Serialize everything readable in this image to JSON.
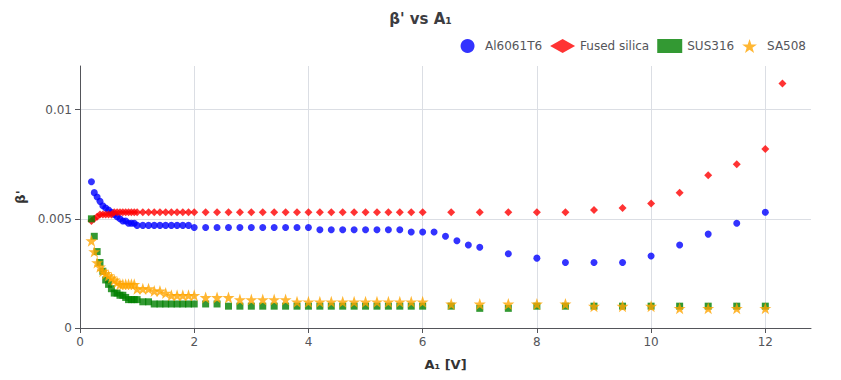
{
  "chart_data": {
    "type": "scatter",
    "title": "β' vs A₁",
    "x_label": "A₁ [V]",
    "y_label": "β'",
    "xlim": [
      0,
      12.8
    ],
    "ylim": [
      0,
      0.012
    ],
    "xticks": [
      0,
      2,
      4,
      6,
      8,
      10,
      12
    ],
    "yticks": [
      0,
      0.005,
      0.01
    ],
    "grid": true,
    "legend": "upper right",
    "series": [
      {
        "name": "Al6061T6",
        "color": "#0000FF",
        "marker": "circle",
        "x": [
          0.2,
          0.25,
          0.3,
          0.35,
          0.4,
          0.45,
          0.5,
          0.55,
          0.6,
          0.65,
          0.7,
          0.75,
          0.8,
          0.85,
          0.9,
          0.95,
          1.0,
          1.1,
          1.2,
          1.3,
          1.4,
          1.5,
          1.6,
          1.7,
          1.8,
          1.9,
          2.0,
          2.2,
          2.4,
          2.6,
          2.8,
          3.0,
          3.2,
          3.4,
          3.6,
          3.8,
          4.0,
          4.2,
          4.4,
          4.6,
          4.8,
          5.0,
          5.2,
          5.4,
          5.6,
          5.8,
          6.0,
          6.2,
          6.4,
          6.6,
          6.8,
          7.0,
          7.5,
          8.0,
          8.5,
          9.0,
          9.5,
          10.0,
          10.5,
          11.0,
          11.5,
          12.0
        ],
        "values": [
          0.0067,
          0.0062,
          0.006,
          0.0058,
          0.0056,
          0.0055,
          0.0054,
          0.0053,
          0.0052,
          0.0051,
          0.005,
          0.0049,
          0.0049,
          0.0048,
          0.0048,
          0.0048,
          0.0047,
          0.0047,
          0.0047,
          0.0047,
          0.0047,
          0.0047,
          0.0047,
          0.0047,
          0.0047,
          0.0047,
          0.0046,
          0.0046,
          0.0046,
          0.0046,
          0.0046,
          0.0046,
          0.0046,
          0.0046,
          0.0046,
          0.0046,
          0.0046,
          0.0045,
          0.0045,
          0.0045,
          0.0045,
          0.0045,
          0.0045,
          0.0045,
          0.0045,
          0.0044,
          0.0044,
          0.0044,
          0.0042,
          0.004,
          0.0038,
          0.0037,
          0.0034,
          0.0032,
          0.003,
          0.003,
          0.003,
          0.0033,
          0.0038,
          0.0043,
          0.0048,
          0.0053
        ]
      },
      {
        "name": "Fused silica",
        "color": "#FF0000",
        "marker": "diamond",
        "x": [
          0.2,
          0.25,
          0.3,
          0.35,
          0.4,
          0.45,
          0.5,
          0.55,
          0.6,
          0.65,
          0.7,
          0.75,
          0.8,
          0.85,
          0.9,
          0.95,
          1.0,
          1.1,
          1.2,
          1.3,
          1.4,
          1.5,
          1.6,
          1.7,
          1.8,
          1.9,
          2.0,
          2.2,
          2.4,
          2.6,
          2.8,
          3.0,
          3.2,
          3.4,
          3.6,
          3.8,
          4.0,
          4.2,
          4.4,
          4.6,
          4.8,
          5.0,
          5.2,
          5.4,
          5.6,
          5.8,
          6.0,
          6.5,
          7.0,
          7.5,
          8.0,
          8.5,
          9.0,
          9.5,
          10.0,
          10.5,
          11.0,
          11.5,
          12.0,
          12.3
        ],
        "values": [
          0.0049,
          0.005,
          0.0051,
          0.0052,
          0.0052,
          0.0052,
          0.0052,
          0.0052,
          0.0053,
          0.0053,
          0.0053,
          0.0053,
          0.0053,
          0.0053,
          0.0053,
          0.0053,
          0.0053,
          0.0053,
          0.0053,
          0.0053,
          0.0053,
          0.0053,
          0.0053,
          0.0053,
          0.0053,
          0.0053,
          0.0053,
          0.0053,
          0.0053,
          0.0053,
          0.0053,
          0.0053,
          0.0053,
          0.0053,
          0.0053,
          0.0053,
          0.0053,
          0.0053,
          0.0053,
          0.0053,
          0.0053,
          0.0053,
          0.0053,
          0.0053,
          0.0053,
          0.0053,
          0.0053,
          0.0053,
          0.0053,
          0.0053,
          0.0053,
          0.0053,
          0.0054,
          0.0055,
          0.0057,
          0.0062,
          0.007,
          0.0075,
          0.0082,
          0.0112
        ]
      },
      {
        "name": "SUS316",
        "color": "#008000",
        "marker": "square",
        "x": [
          0.2,
          0.25,
          0.3,
          0.35,
          0.4,
          0.45,
          0.5,
          0.55,
          0.6,
          0.65,
          0.7,
          0.75,
          0.8,
          0.85,
          0.9,
          0.95,
          1.0,
          1.1,
          1.2,
          1.3,
          1.4,
          1.5,
          1.6,
          1.7,
          1.8,
          1.9,
          2.0,
          2.2,
          2.4,
          2.6,
          2.8,
          3.0,
          3.2,
          3.4,
          3.6,
          3.8,
          4.0,
          4.2,
          4.4,
          4.6,
          4.8,
          5.0,
          5.2,
          5.4,
          5.6,
          5.8,
          6.0,
          6.5,
          7.0,
          7.5,
          8.0,
          8.5,
          9.0,
          9.5,
          10.0,
          10.5,
          11.0,
          11.5,
          12.0
        ],
        "values": [
          0.005,
          0.0042,
          0.0035,
          0.003,
          0.0026,
          0.0022,
          0.002,
          0.0018,
          0.0016,
          0.0016,
          0.0015,
          0.0015,
          0.0014,
          0.0013,
          0.0013,
          0.0013,
          0.0013,
          0.0012,
          0.0012,
          0.0011,
          0.0011,
          0.0011,
          0.0011,
          0.0011,
          0.0011,
          0.0011,
          0.0011,
          0.0011,
          0.0011,
          0.001,
          0.001,
          0.001,
          0.001,
          0.001,
          0.001,
          0.001,
          0.001,
          0.001,
          0.001,
          0.001,
          0.001,
          0.001,
          0.001,
          0.001,
          0.001,
          0.001,
          0.001,
          0.001,
          0.0009,
          0.0009,
          0.001,
          0.001,
          0.001,
          0.001,
          0.001,
          0.001,
          0.001,
          0.001,
          0.001
        ]
      },
      {
        "name": "SA508",
        "color": "#FFA500",
        "marker": "star",
        "x": [
          0.2,
          0.25,
          0.3,
          0.35,
          0.4,
          0.45,
          0.5,
          0.55,
          0.6,
          0.65,
          0.7,
          0.75,
          0.8,
          0.85,
          0.9,
          0.95,
          1.0,
          1.1,
          1.2,
          1.3,
          1.4,
          1.5,
          1.6,
          1.7,
          1.8,
          1.9,
          2.0,
          2.2,
          2.4,
          2.6,
          2.8,
          3.0,
          3.2,
          3.4,
          3.6,
          3.8,
          4.0,
          4.2,
          4.4,
          4.6,
          4.8,
          5.0,
          5.2,
          5.4,
          5.6,
          5.8,
          6.0,
          6.5,
          7.0,
          7.5,
          8.0,
          8.5,
          9.0,
          9.5,
          10.0,
          10.5,
          11.0,
          11.5,
          12.0
        ],
        "values": [
          0.004,
          0.0035,
          0.003,
          0.0028,
          0.0026,
          0.0025,
          0.0024,
          0.0023,
          0.0022,
          0.0021,
          0.002,
          0.002,
          0.002,
          0.002,
          0.002,
          0.002,
          0.0018,
          0.0018,
          0.0018,
          0.0017,
          0.0017,
          0.0016,
          0.0015,
          0.0015,
          0.0015,
          0.0015,
          0.0015,
          0.0014,
          0.0014,
          0.0014,
          0.0013,
          0.0013,
          0.0013,
          0.0013,
          0.0013,
          0.0012,
          0.0012,
          0.0012,
          0.0012,
          0.0012,
          0.0012,
          0.0012,
          0.0012,
          0.0012,
          0.0012,
          0.0012,
          0.0012,
          0.0011,
          0.0011,
          0.0011,
          0.0011,
          0.0011,
          0.001,
          0.001,
          0.001,
          0.0009,
          0.0009,
          0.0009,
          0.0009
        ]
      }
    ]
  }
}
